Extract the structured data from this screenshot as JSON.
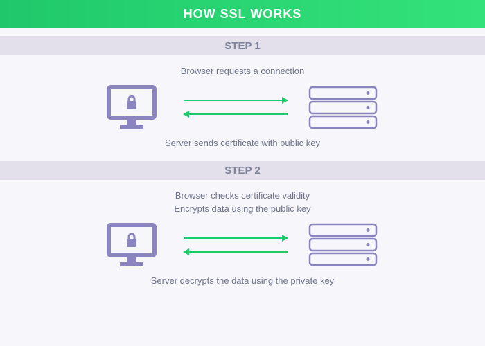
{
  "title": "HOW SSL WORKS",
  "colors": {
    "header_gradient_from": "#1fc96b",
    "header_gradient_to": "#34e27a",
    "header_text": "#ffffff",
    "step_bg": "#e3e0ec",
    "step_text": "#7d839a",
    "caption_text": "#6f758c",
    "icon_purple": "#8a85be",
    "arrow_green": "#1fc96b",
    "page_bg": "#f7f6fb"
  },
  "step1": {
    "label": "STEP 1",
    "top_caption": "Browser requests a connection",
    "bottom_caption": "Server sends certificate with public key"
  },
  "step2": {
    "label": "STEP 2",
    "top_caption_line1": "Browser checks certificate validity",
    "top_caption_line2": "Encrypts data using the public key",
    "bottom_caption": "Server decrypts the data using the private key"
  },
  "icons": {
    "monitor": "secure-monitor-icon",
    "server": "server-icon"
  }
}
